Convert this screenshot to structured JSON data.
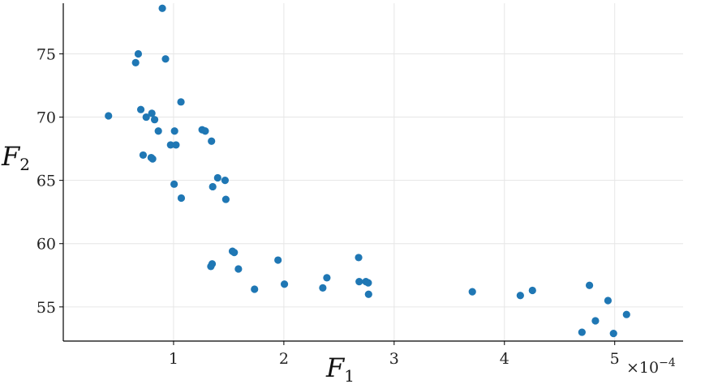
{
  "chart_data": {
    "type": "scatter",
    "title": "",
    "xlabel": "F",
    "xlabel_sub": "1",
    "ylabel": "F",
    "ylabel_sub": "2",
    "x_scale_note": "×10",
    "x_scale_exp": "−4",
    "xlim": [
      0.0,
      0.000562
    ],
    "ylim": [
      52.3,
      79.0
    ],
    "xticks": [
      0.0001,
      0.0002,
      0.0003,
      0.0004,
      0.0005
    ],
    "xtick_labels": [
      "1",
      "2",
      "3",
      "4",
      "5"
    ],
    "yticks": [
      55,
      60,
      65,
      70,
      75
    ],
    "ytick_labels": [
      "55",
      "60",
      "65",
      "70",
      "75"
    ],
    "grid": true,
    "color": "#1f77b4",
    "series": [
      {
        "x": [
          8.98e-05,
          6.56e-05,
          6.8e-05,
          9.27e-05,
          4.1e-05,
          0.0001067,
          7.03e-05,
          8.03e-05,
          7.52e-05,
          8.28e-05,
          8.62e-05,
          0.0001009,
          0.0001259,
          0.0001287,
          0.0001344,
          9.73e-05,
          0.0001022,
          7.24e-05,
          7.97e-05,
          8.1e-05,
          0.00014,
          0.0001467,
          0.0001005,
          0.0001355,
          0.000107,
          0.0001474,
          0.0001534,
          0.000155,
          0.0001947,
          0.0002678,
          0.000135,
          0.0001338,
          0.0001588,
          0.000239,
          0.0002005,
          0.0002353,
          0.0001734,
          0.0002683,
          0.0002744,
          0.0002765,
          0.0002768,
          0.0003709,
          0.0004254,
          0.0004144,
          0.0004771,
          0.0004939,
          0.0005107,
          0.0004825,
          0.0004703,
          0.0004989
        ],
        "y": [
          78.6,
          74.3,
          75.0,
          74.6,
          70.1,
          71.2,
          70.6,
          70.3,
          70.0,
          69.8,
          68.9,
          68.9,
          69.0,
          68.9,
          68.1,
          67.8,
          67.8,
          67.0,
          66.8,
          66.7,
          65.2,
          65.0,
          64.7,
          64.5,
          63.6,
          63.5,
          59.4,
          59.3,
          58.7,
          58.9,
          58.4,
          58.2,
          58.0,
          57.3,
          56.8,
          56.5,
          56.4,
          57.0,
          57.0,
          56.9,
          56.0,
          56.2,
          56.3,
          55.9,
          56.7,
          55.5,
          54.4,
          53.9,
          53.0,
          52.9
        ]
      }
    ]
  }
}
